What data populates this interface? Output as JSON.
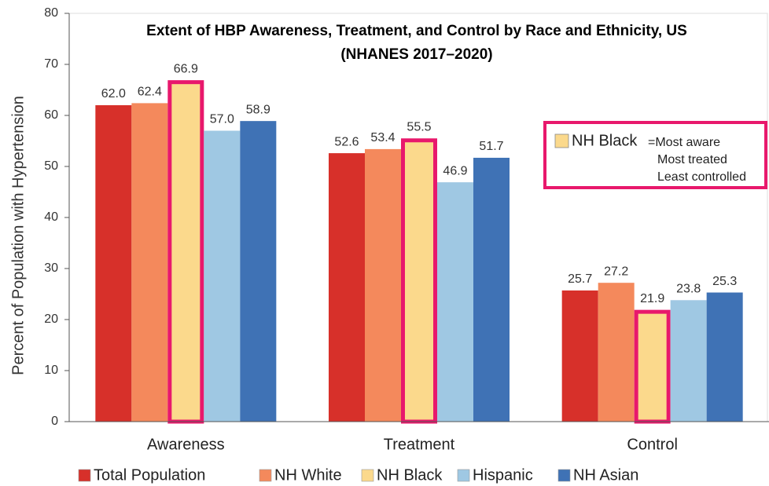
{
  "chart_data": {
    "type": "bar",
    "title": "Extent of HBP Awareness, Treatment, and Control by Race and Ethnicity, US",
    "subtitle": "(NHANES 2017–2020)",
    "y_label": "Percent of Population with Hypertension",
    "categories": [
      "Awareness",
      "Treatment",
      "Control"
    ],
    "series": [
      {
        "name": "Total Population",
        "color": "#d7302a",
        "values": [
          62.0,
          52.6,
          25.7
        ],
        "value_labels": [
          "62.0",
          "52.6",
          "25.7"
        ]
      },
      {
        "name": "NH White",
        "color": "#f4895c",
        "values": [
          62.4,
          53.4,
          27.2
        ],
        "value_labels": [
          "62.4",
          "53.4",
          "27.2"
        ]
      },
      {
        "name": "NH Black",
        "color": "#fbd98c",
        "values": [
          66.9,
          55.5,
          21.9
        ],
        "value_labels": [
          "66.9",
          "55.5",
          "21.9"
        ],
        "highlight": true
      },
      {
        "name": "Hispanic",
        "color": "#9fc8e3",
        "values": [
          57.0,
          46.9,
          23.8
        ],
        "value_labels": [
          "57.0",
          "46.9",
          "23.8"
        ]
      },
      {
        "name": "NH Asian",
        "color": "#3f72b5",
        "values": [
          58.9,
          51.7,
          25.3
        ],
        "value_labels": [
          "58.9",
          "51.7",
          "25.3"
        ]
      }
    ],
    "ylim": [
      0,
      80
    ],
    "yticks": [
      0,
      10,
      20,
      30,
      40,
      50,
      60,
      70,
      80
    ],
    "highlight_color": "#e8186c",
    "annotation": {
      "label": "NH Black",
      "lines": [
        "=Most aware",
        "Most treated",
        "Least controlled"
      ]
    },
    "legend": "bottom"
  }
}
